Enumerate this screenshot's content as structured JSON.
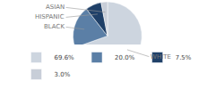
{
  "chart_data": {
    "type": "pie",
    "categories": [
      "WHITE",
      "BLACK",
      "HISPANIC",
      "ASIAN"
    ],
    "values": [
      69.6,
      20.0,
      7.5,
      3.0
    ],
    "value_labels": [
      "69.6%",
      "20.0%",
      "7.5%",
      "3.0%"
    ],
    "colors": [
      "#cdd5df",
      "#5b7fa6",
      "#1f4068",
      "#c8ced8"
    ],
    "legend": "bottom"
  }
}
